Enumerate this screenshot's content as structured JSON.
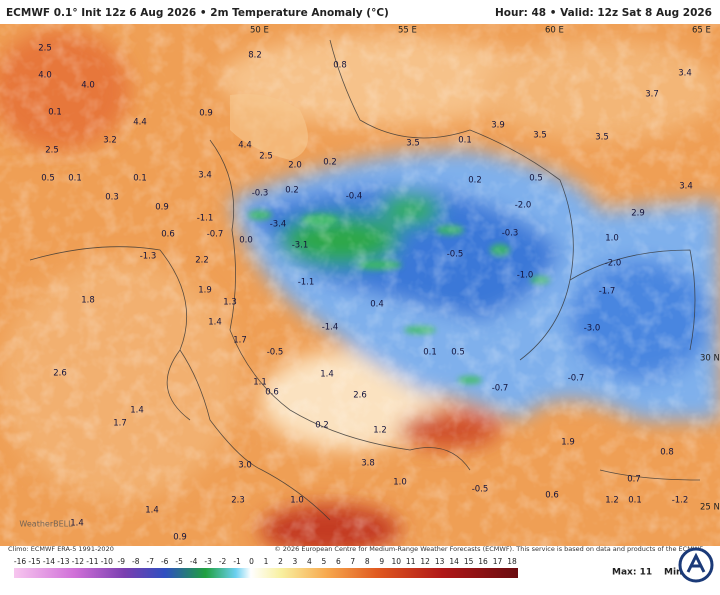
{
  "header": {
    "left": "ECMWF 0.1° Init 12z 6 Aug 2026 • 2m Temperature Anomaly (°C)",
    "right": "Hour: 48 • Valid: 12z Sat 8 Aug 2026"
  },
  "map": {
    "grid_labels": [
      "50 E",
      "55 E",
      "60 E",
      "65 E",
      "30 N",
      "25 N"
    ],
    "values": [
      "2.5",
      "4.0",
      "4.0",
      "0.1",
      "4.4",
      "3.2",
      "2.5",
      "0.5",
      "0.1",
      "0.1",
      "0.3",
      "0.9",
      "-1.1",
      "-3.4",
      "-3.1",
      "0.0",
      "-0.7",
      "0.6",
      "-1.3",
      "2.2",
      "1.9",
      "1.3",
      "1.4",
      "1.8",
      "1.7",
      "-0.5",
      "-1.1",
      "-1.4",
      "0.4",
      "0.1",
      "0.5",
      "-0.7",
      "1.4",
      "2.6",
      "1.2",
      "1.1",
      "0.6",
      "0.2",
      "2.6",
      "1.4",
      "1.7",
      "3.0",
      "3.8",
      "1.0",
      "2.3",
      "1.0",
      "1.4",
      "1.4",
      "0.9",
      "-0.5",
      "-1.0",
      "-0.3",
      "-2.0",
      "0.2",
      "0.5",
      "0.1",
      "3.9",
      "3.5",
      "-0.4",
      "0.2",
      "2.0",
      "4.4",
      "8.2",
      "0.8",
      "0.9",
      "3.5",
      "3.4",
      "3.7",
      "3.5",
      "3.4",
      "2.9",
      "1.0",
      "-2.0",
      "-1.7",
      "-3.0",
      "-0.7",
      "1.9",
      "0.7",
      "0.8",
      "0.1",
      "-1.2",
      "-0.5",
      "0.6",
      "1.2",
      "-0.3",
      "0.2",
      "3.4",
      "2.5"
    ],
    "watermark": "WeatherBELL"
  },
  "footer": {
    "climo": "Climo: ECMWF ERA-5 1991-2020",
    "copyright": "© 2026 European Centre for Medium-Range Weather Forecasts (ECMWF). This service is based on data and products of the ECMWF.",
    "colorbar": [
      -16,
      -15,
      -14,
      -13,
      -12,
      -11,
      -10,
      -9,
      -8,
      -7,
      -6,
      -5,
      -4,
      -3,
      -2,
      -1,
      0,
      1,
      2,
      3,
      4,
      5,
      6,
      7,
      8,
      9,
      10,
      11,
      12,
      13,
      14,
      15,
      16,
      17,
      18
    ],
    "max": "Max: 11",
    "min": "Min"
  }
}
